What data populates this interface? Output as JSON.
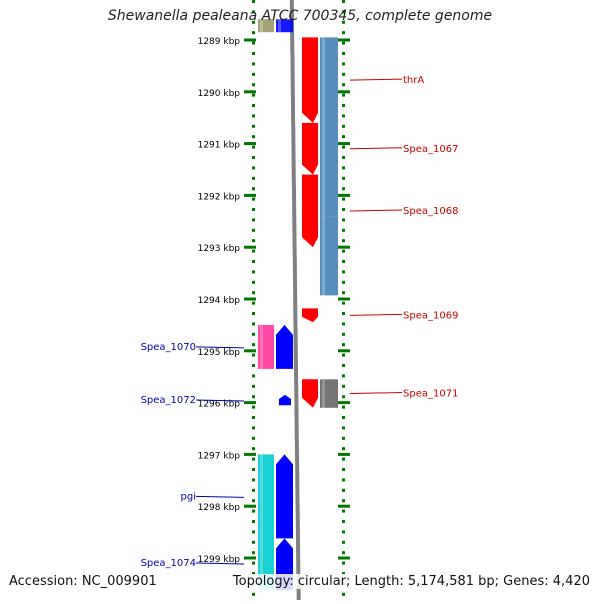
{
  "title": "Shewanella pealeana ATCC 700345, complete genome",
  "accession": "Accession: NC_009901",
  "topology": "Topology: circular; Length: 5,174,581 bp; Genes: 4,420",
  "ticks": [
    {
      "label": "1289 kbp",
      "kbp": 1289
    },
    {
      "label": "1290 kbp",
      "kbp": 1290
    },
    {
      "label": "1291 kbp",
      "kbp": 1291
    },
    {
      "label": "1292 kbp",
      "kbp": 1292
    },
    {
      "label": "1293 kbp",
      "kbp": 1293
    },
    {
      "label": "1294 kbp",
      "kbp": 1294
    },
    {
      "label": "1295 kbp",
      "kbp": 1295
    },
    {
      "label": "1296 kbp",
      "kbp": 1296
    },
    {
      "label": "1297 kbp",
      "kbp": 1297
    },
    {
      "label": "1298 kbp",
      "kbp": 1298
    },
    {
      "label": "1299 kbp",
      "kbp": 1299
    }
  ],
  "genes": [
    {
      "label": "thrA",
      "strand": "forward",
      "start_kbp": 1288.95,
      "end_kbp": 1290.6,
      "color": "#ff0000"
    },
    {
      "label": "Spea_1067",
      "strand": "forward",
      "start_kbp": 1290.6,
      "end_kbp": 1291.6,
      "color": "#ff0000"
    },
    {
      "label": "Spea_1068",
      "strand": "forward",
      "start_kbp": 1291.6,
      "end_kbp": 1293.0,
      "color": "#ff0000"
    },
    {
      "label": "Spea_1069",
      "strand": "forward",
      "start_kbp": 1294.18,
      "end_kbp": 1294.45,
      "color": "#ff0000"
    },
    {
      "label": "Spea_1070",
      "strand": "reverse",
      "start_kbp": 1294.5,
      "end_kbp": 1295.35,
      "color": "#0000ff"
    },
    {
      "label": "Spea_1071",
      "strand": "forward",
      "start_kbp": 1295.55,
      "end_kbp": 1296.1,
      "color": "#ff0000"
    },
    {
      "label": "Spea_1072",
      "strand": "reverse",
      "start_kbp": 1295.85,
      "end_kbp": 1296.05,
      "color": "#0000ff"
    },
    {
      "label": "pgi",
      "strand": "reverse",
      "start_kbp": 1297.0,
      "end_kbp": 1298.62,
      "color": "#0000ff"
    },
    {
      "label": "Spea_1074",
      "strand": "reverse",
      "start_kbp": 1298.62,
      "end_kbp": 1299.6,
      "color": "#0000ff"
    }
  ],
  "features": [
    {
      "strand": "forward",
      "start_kbp": 1288.95,
      "end_kbp": 1292.4,
      "color": "#4682b4"
    },
    {
      "strand": "forward",
      "start_kbp": 1292.4,
      "end_kbp": 1293.93,
      "color": "#4682b4"
    },
    {
      "strand": "forward",
      "start_kbp": 1295.55,
      "end_kbp": 1296.1,
      "color": "#666666"
    },
    {
      "strand": "reverse",
      "start_kbp": 1294.5,
      "end_kbp": 1295.35,
      "color": "#ff3399"
    },
    {
      "strand": "reverse",
      "start_kbp": 1297.0,
      "end_kbp": 1299.6,
      "color": "#00cccc"
    },
    {
      "strand": "reverse",
      "start_kbp": 1288.6,
      "end_kbp": 1288.85,
      "color": "#999966"
    },
    {
      "strand": "reverse",
      "start_kbp": 1288.6,
      "end_kbp": 1288.85,
      "color": "#0000ff"
    }
  ],
  "colors": {
    "forward_label": "#cc0000",
    "reverse_label": "#0000aa",
    "backbone": "#808080",
    "ruler_dots": "#007700",
    "text": "#111111"
  }
}
